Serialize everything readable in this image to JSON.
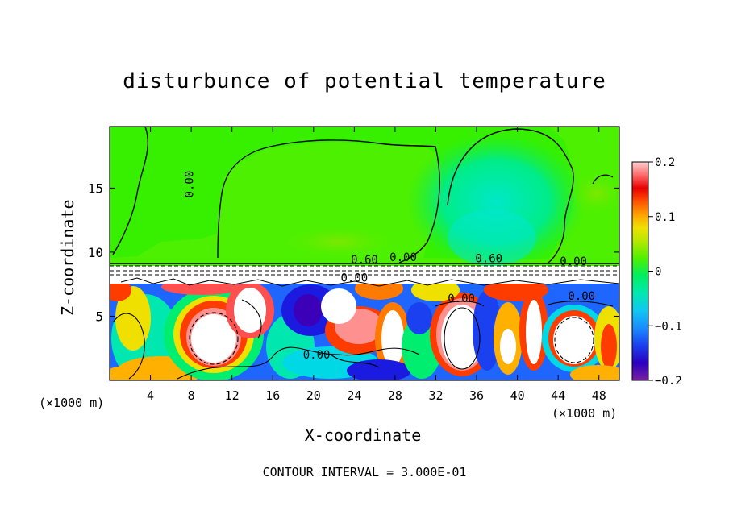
{
  "chart_data": {
    "type": "heatmap",
    "title": "disturbunce of potential temperature",
    "xlabel": "X-coordinate",
    "ylabel": "Z-coordinate",
    "x_unit": "(×1000 m)",
    "z_unit": "(×1000 m)",
    "xlim": [
      0,
      50
    ],
    "ylim": [
      0,
      19.8
    ],
    "xticks": [
      4,
      8,
      12,
      16,
      20,
      24,
      28,
      32,
      36,
      40,
      44,
      48
    ],
    "yticks": [
      5,
      10,
      15
    ],
    "colorbar": {
      "range": [
        -0.2,
        0.2
      ],
      "ticks": [
        -0.2,
        -0.1,
        0,
        0.1,
        0.2
      ],
      "tick_labels": [
        "−0.2",
        "−0.1",
        "0",
        "0.1",
        "0.2"
      ],
      "colors": [
        "#7a1fa2",
        "#3b00b8",
        "#1a1ae0",
        "#1e66ff",
        "#1fa8ff",
        "#00d8e6",
        "#00e8b0",
        "#00ee70",
        "#40f000",
        "#8ae800",
        "#c8e600",
        "#f0e000",
        "#ffb000",
        "#ff7a00",
        "#ff3c00",
        "#e80000",
        "#ff3a3a",
        "#ff7070",
        "#ffa0a0",
        "#ffd0d0"
      ]
    },
    "contour_labels": [
      {
        "text": "0.00",
        "x": 8.2,
        "z": 15.3,
        "rotation": -90
      },
      {
        "text": "0.60",
        "x": 25.0,
        "z": 9.1
      },
      {
        "text": "0.00",
        "x": 28.8,
        "z": 9.3
      },
      {
        "text": "0.60",
        "x": 37.2,
        "z": 9.2
      },
      {
        "text": "0.00",
        "x": 45.5,
        "z": 9.0
      },
      {
        "text": "0.00",
        "x": 24.0,
        "z": 7.7
      },
      {
        "text": "0.00",
        "x": 34.5,
        "z": 6.1
      },
      {
        "text": "0.00",
        "x": 46.3,
        "z": 6.3
      },
      {
        "text": "0.00",
        "x": 20.3,
        "z": 1.7
      }
    ],
    "note": "CONTOUR INTERVAL = 3.000E-01"
  }
}
